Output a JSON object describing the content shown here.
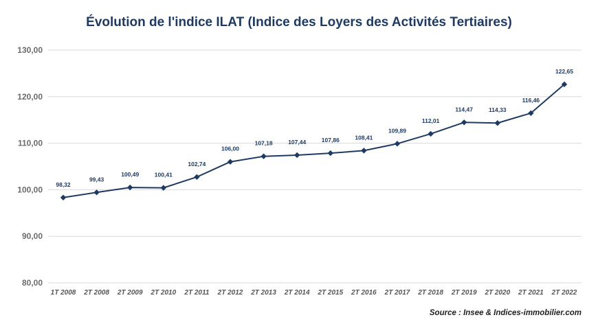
{
  "chart_data": {
    "type": "line",
    "title": "Évolution de l'indice ILAT (Indice des Loyers des Activités Tertiaires)",
    "categories": [
      "1T 2008",
      "2T 2008",
      "2T 2009",
      "2T 2010",
      "2T 2011",
      "2T 2012",
      "2T 2013",
      "2T 2014",
      "2T 2015",
      "2T 2016",
      "2T 2017",
      "2T 2018",
      "2T 2019",
      "2T 2020",
      "2T 2021",
      "2T 2022"
    ],
    "values": [
      98.32,
      99.43,
      100.49,
      100.41,
      102.74,
      106.0,
      107.18,
      107.44,
      107.86,
      108.41,
      109.89,
      112.01,
      114.47,
      114.33,
      116.46,
      122.65
    ],
    "data_labels": [
      "98,32",
      "99,43",
      "100,49",
      "100,41",
      "102,74",
      "106,00",
      "107,18",
      "107,44",
      "107,86",
      "108,41",
      "109,89",
      "112,01",
      "114,47",
      "114,33",
      "116,46",
      "122,65"
    ],
    "ylim": [
      80,
      130
    ],
    "yticks": [
      80,
      90,
      100,
      110,
      120,
      130
    ],
    "ytick_labels": [
      "80,00",
      "90,00",
      "100,00",
      "110,00",
      "120,00",
      "130,00"
    ],
    "xlabel": "",
    "ylabel": "",
    "grid": true,
    "line_color": "#1f3a60",
    "title_color": "#1f3a60",
    "grid_color": "#d9d9d9"
  },
  "source": "Source : Insee & Indices-immobilier.com"
}
